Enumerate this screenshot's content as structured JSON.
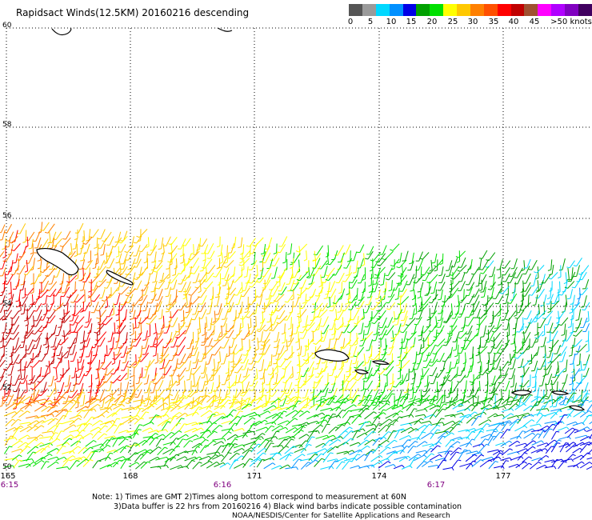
{
  "title": "Rapidsact Winds(12.5KM) 20160216 descending",
  "legend": {
    "colors": [
      "#555555",
      "#9a9a9a",
      "#00d8ff",
      "#0090ff",
      "#0000e6",
      "#00a000",
      "#00e000",
      "#ffff00",
      "#ffc800",
      "#ff8000",
      "#ff5000",
      "#ff0000",
      "#c00000",
      "#a05030",
      "#ff00ff",
      "#b000ff",
      "#8000c0",
      "#400060"
    ],
    "labels": [
      "0",
      "5",
      "10",
      "15",
      "20",
      "25",
      "30",
      "35",
      "40",
      "45",
      ">50 knots"
    ]
  },
  "map": {
    "lat_labels": [
      "60",
      "58",
      "56",
      "54",
      "52",
      "50"
    ],
    "lon_labels": [
      "165",
      "168",
      "171",
      "174",
      "177"
    ],
    "time_labels": [
      "6:15",
      "6:16",
      "6:17"
    ],
    "land_color": "#000000",
    "grid": true
  },
  "notes": {
    "line1": "Note: 1) Times are GMT  2)Times along bottom correspond to measurement at 60N",
    "line2": "3)Data buffer is 22 hrs from 20160216  4) Black wind barbs indicate possible contamination",
    "line3": "NOAA/NESDIS/Center for Satellite Applications and Research"
  }
}
